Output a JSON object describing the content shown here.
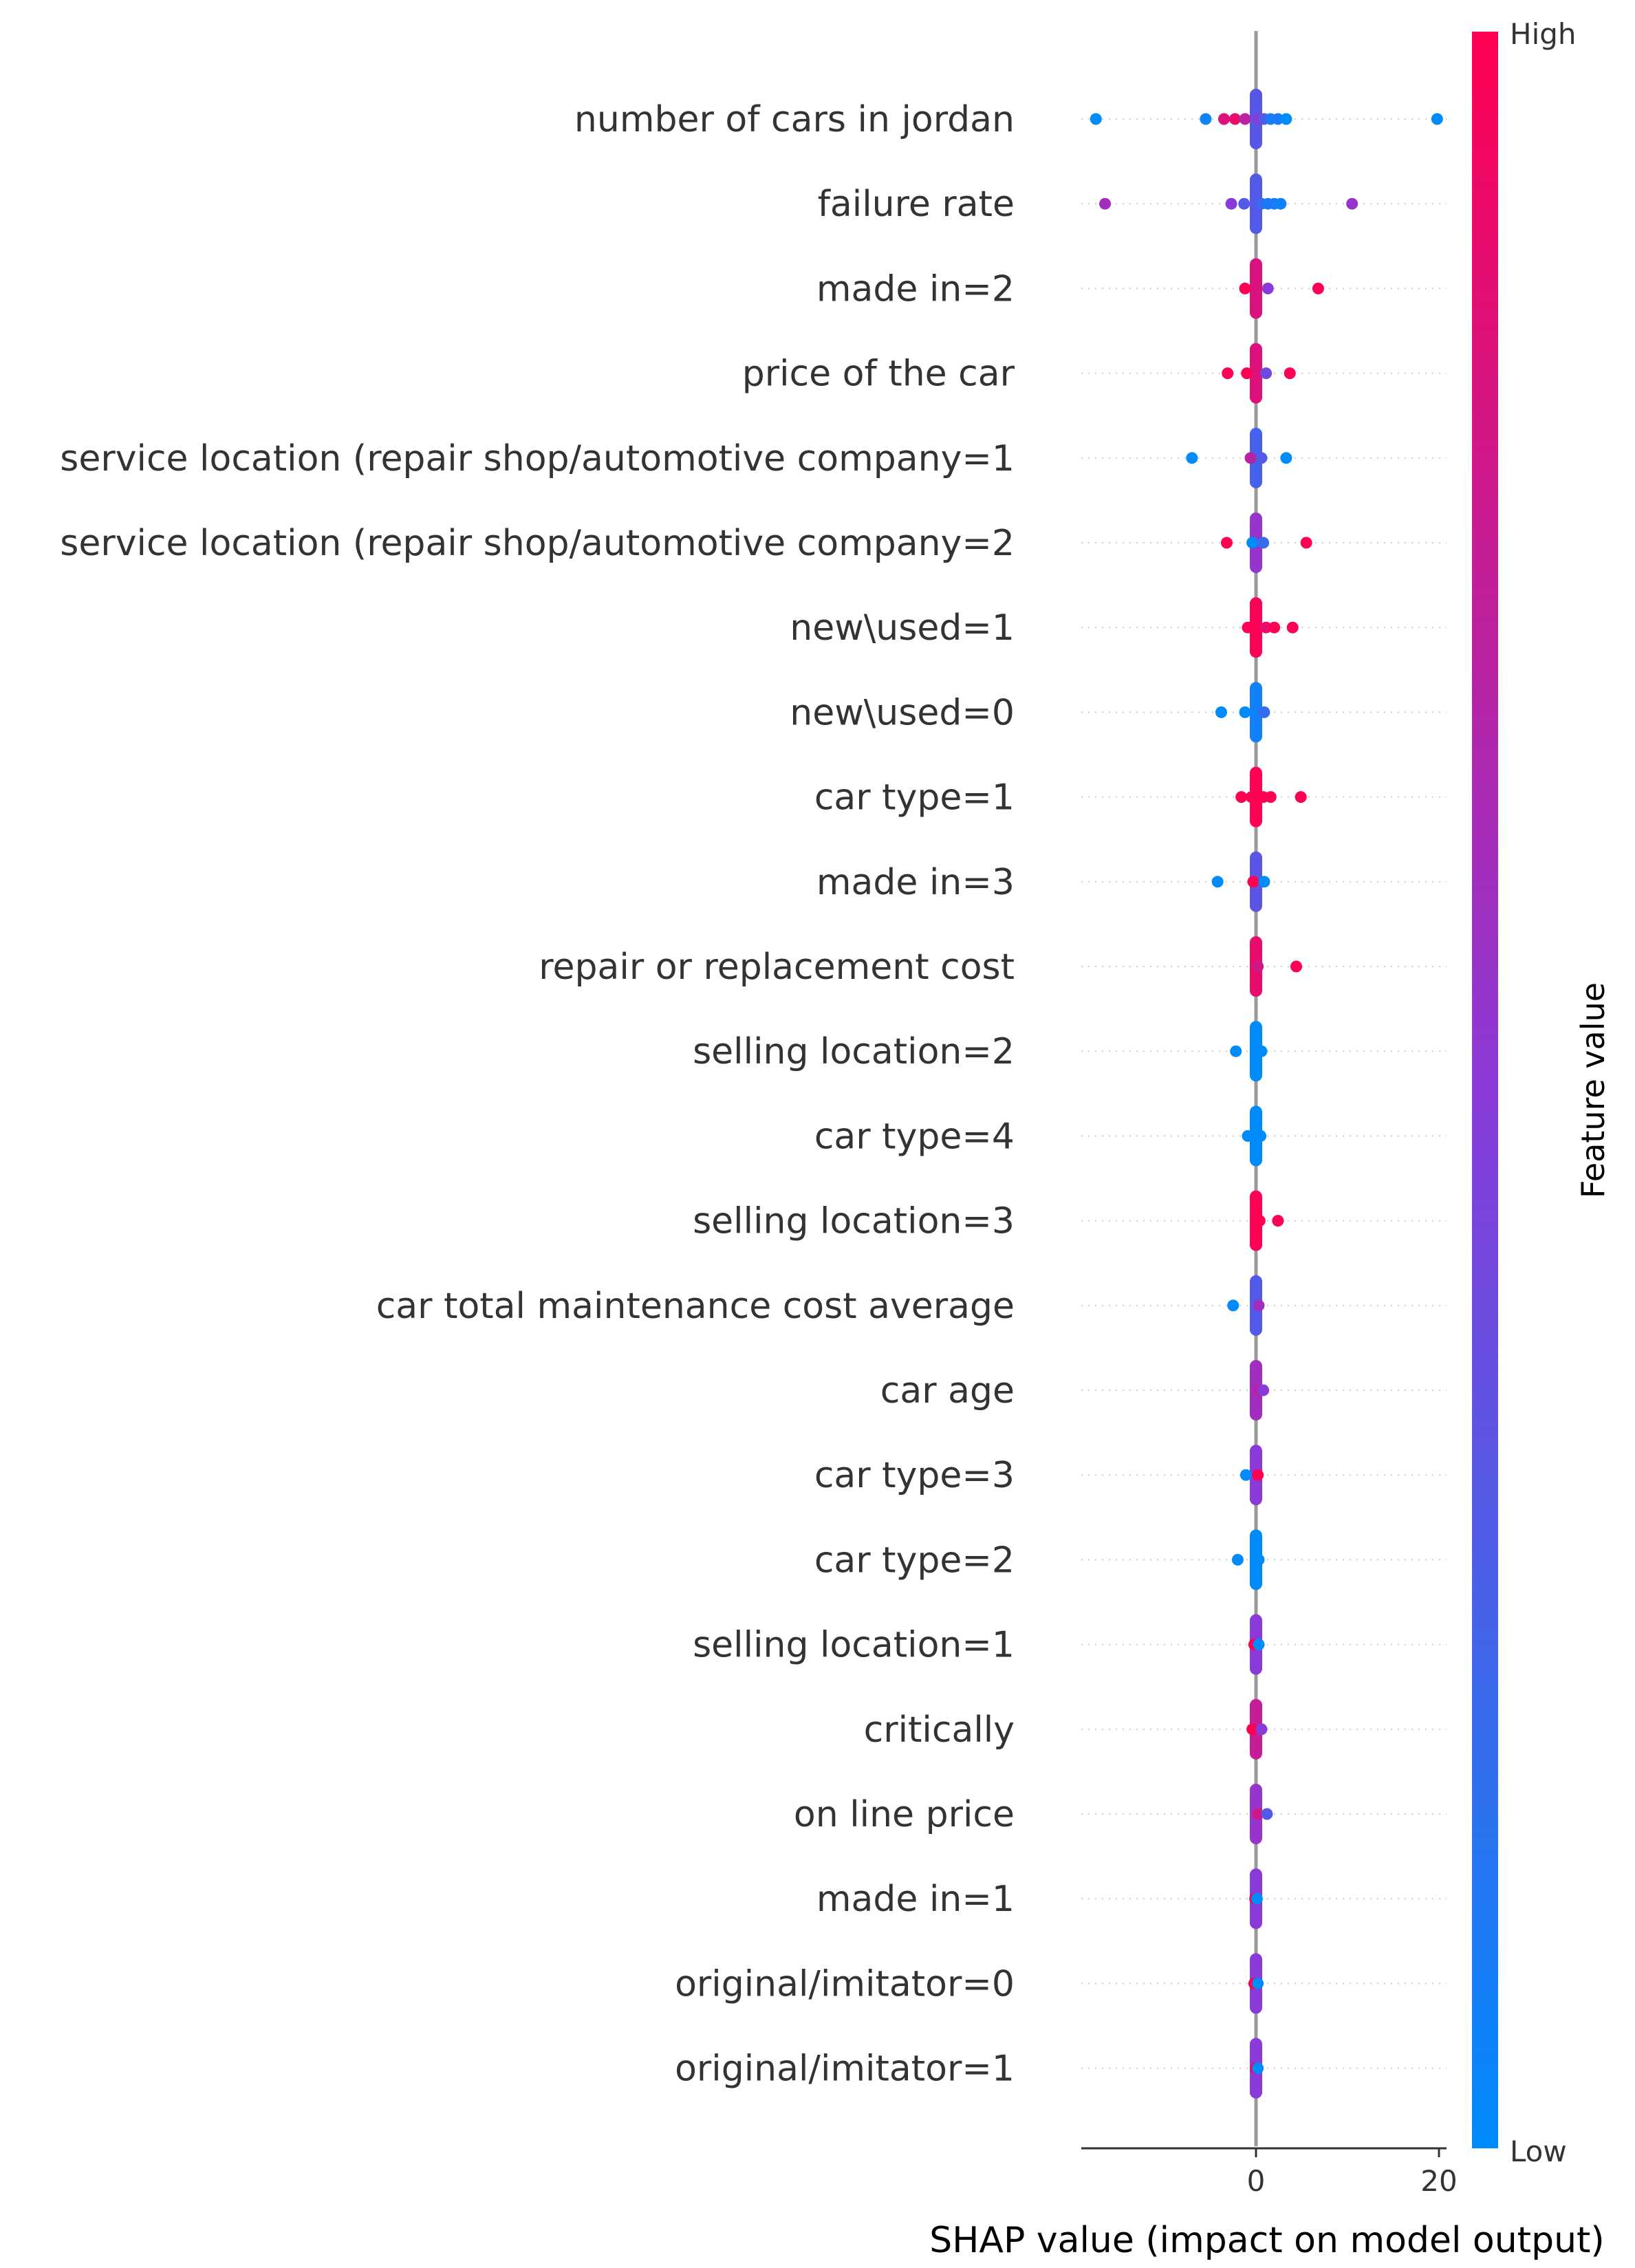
{
  "chart_data": {
    "type": "scatter",
    "subtype": "shap-beeswarm",
    "xlabel": "SHAP value (impact on model output)",
    "xticks": [
      0,
      20
    ],
    "xlim": [
      -19.5,
      21
    ],
    "grid": "horizontal dotted guide per feature",
    "legend": "colorbar right",
    "colorbar": {
      "title": "Feature value",
      "high_label": "High",
      "low_label": "Low",
      "high_color": "#ff0052",
      "low_color": "#008bfb"
    },
    "colors": {
      "zero_line": "#999999",
      "axis": "#333333",
      "grid": "#cccccc"
    },
    "features": [
      {
        "name": "number of cars in jordan",
        "points": [
          {
            "x": -17.5,
            "v": 0.0
          },
          {
            "x": -5.5,
            "v": 0.05
          },
          {
            "x": -3.5,
            "v": 0.85
          },
          {
            "x": -2.3,
            "v": 0.9
          },
          {
            "x": -1.2,
            "v": 0.7
          },
          {
            "x": 0.3,
            "v": 0.5
          },
          {
            "x": 0.9,
            "v": 0.3
          },
          {
            "x": 1.6,
            "v": 0.1
          },
          {
            "x": 2.4,
            "v": 0.1
          },
          {
            "x": 3.3,
            "v": 0.0
          },
          {
            "x": 19.8,
            "v": 0.0
          }
        ]
      },
      {
        "name": "failure rate",
        "points": [
          {
            "x": -16.5,
            "v": 0.6
          },
          {
            "x": -2.7,
            "v": 0.5
          },
          {
            "x": -1.3,
            "v": 0.3
          },
          {
            "x": 0.6,
            "v": 0.2
          },
          {
            "x": 1.3,
            "v": 0.1
          },
          {
            "x": 2.0,
            "v": 0.1
          },
          {
            "x": 2.7,
            "v": 0.05
          },
          {
            "x": 10.5,
            "v": 0.55
          }
        ]
      },
      {
        "name": "made in=2",
        "points": [
          {
            "x": -1.2,
            "v": 1.0
          },
          {
            "x": 1.3,
            "v": 0.5
          },
          {
            "x": 6.8,
            "v": 1.0
          }
        ]
      },
      {
        "name": "price of the car",
        "points": [
          {
            "x": -3.1,
            "v": 1.0
          },
          {
            "x": -1.0,
            "v": 1.0
          },
          {
            "x": 1.1,
            "v": 0.4
          },
          {
            "x": 3.7,
            "v": 1.0
          }
        ]
      },
      {
        "name": "service location (repair shop/automotive company=1",
        "points": [
          {
            "x": -7.0,
            "v": 0.0
          },
          {
            "x": -0.6,
            "v": 0.7
          },
          {
            "x": 0.6,
            "v": 0.3
          },
          {
            "x": 3.3,
            "v": 0.0
          }
        ]
      },
      {
        "name": "service location (repair shop/automotive company=2",
        "points": [
          {
            "x": -3.2,
            "v": 1.0
          },
          {
            "x": -0.4,
            "v": 0.0
          },
          {
            "x": 0.8,
            "v": 0.2
          },
          {
            "x": 5.5,
            "v": 1.0
          }
        ]
      },
      {
        "name": "new\\used=1",
        "points": [
          {
            "x": -0.9,
            "v": 1.0
          },
          {
            "x": 1.1,
            "v": 0.9
          },
          {
            "x": 2.0,
            "v": 1.0
          },
          {
            "x": 4.0,
            "v": 1.0
          }
        ]
      },
      {
        "name": "new\\used=0",
        "points": [
          {
            "x": -3.8,
            "v": 0.0
          },
          {
            "x": -1.2,
            "v": 0.0
          },
          {
            "x": 0.9,
            "v": 0.2
          }
        ]
      },
      {
        "name": "car type=1",
        "points": [
          {
            "x": -1.6,
            "v": 1.0
          },
          {
            "x": -0.5,
            "v": 1.0
          },
          {
            "x": 0.8,
            "v": 1.0
          },
          {
            "x": 1.6,
            "v": 1.0
          },
          {
            "x": 4.9,
            "v": 1.0
          }
        ]
      },
      {
        "name": "made in=3",
        "points": [
          {
            "x": -4.2,
            "v": 0.0
          },
          {
            "x": -0.3,
            "v": 1.0
          },
          {
            "x": 0.9,
            "v": 0.0
          }
        ]
      },
      {
        "name": "repair or replacement cost",
        "points": [
          {
            "x": 0.2,
            "v": 0.8
          },
          {
            "x": 4.4,
            "v": 1.0
          }
        ]
      },
      {
        "name": "selling location=2",
        "points": [
          {
            "x": -2.2,
            "v": 0.0
          },
          {
            "x": 0.6,
            "v": 0.0
          }
        ]
      },
      {
        "name": "car type=4",
        "points": [
          {
            "x": -0.9,
            "v": 0.0
          },
          {
            "x": 0.5,
            "v": 0.0
          }
        ]
      },
      {
        "name": "selling location=3",
        "points": [
          {
            "x": 0.4,
            "v": 1.0
          },
          {
            "x": 2.4,
            "v": 1.0
          }
        ]
      },
      {
        "name": "car total maintenance cost average",
        "points": [
          {
            "x": -2.5,
            "v": 0.0
          },
          {
            "x": 0.3,
            "v": 0.6
          }
        ]
      },
      {
        "name": "car age",
        "points": [
          {
            "x": 0.3,
            "v": 0.7
          },
          {
            "x": 0.8,
            "v": 0.5
          }
        ]
      },
      {
        "name": "car type=3",
        "points": [
          {
            "x": -1.1,
            "v": 0.0
          },
          {
            "x": 0.2,
            "v": 1.0
          }
        ]
      },
      {
        "name": "car type=2",
        "points": [
          {
            "x": -2.0,
            "v": 0.0
          },
          {
            "x": 0.3,
            "v": 0.0
          }
        ]
      },
      {
        "name": "selling location=1",
        "points": [
          {
            "x": -0.2,
            "v": 1.0
          },
          {
            "x": 0.3,
            "v": 0.0
          }
        ]
      },
      {
        "name": "critically",
        "points": [
          {
            "x": -0.4,
            "v": 1.0
          },
          {
            "x": 0.6,
            "v": 0.5
          }
        ]
      },
      {
        "name": "on line price",
        "points": [
          {
            "x": 0.2,
            "v": 0.8
          },
          {
            "x": 1.2,
            "v": 0.3
          }
        ]
      },
      {
        "name": "made in=1",
        "points": [
          {
            "x": -0.1,
            "v": 1.0
          },
          {
            "x": 0.1,
            "v": 0.0
          }
        ]
      },
      {
        "name": "original/imitator=0",
        "points": [
          {
            "x": -0.2,
            "v": 1.0
          },
          {
            "x": 0.2,
            "v": 0.0
          }
        ]
      },
      {
        "name": "original/imitator=1",
        "points": [
          {
            "x": 0.0,
            "v": 1.0
          },
          {
            "x": 0.2,
            "v": 0.0
          }
        ]
      }
    ]
  }
}
